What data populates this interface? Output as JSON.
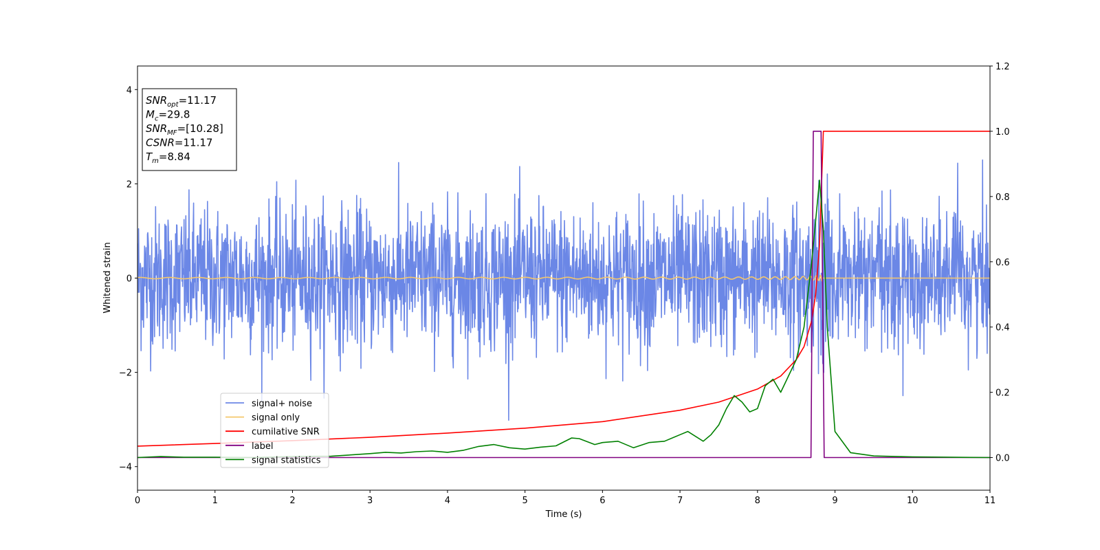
{
  "chart_data": {
    "type": "line",
    "title": "",
    "xlabel": "Time (s)",
    "ylabel": "Whitened strain",
    "xlim": [
      0,
      11
    ],
    "ylim_left": [
      -4.5,
      4.5
    ],
    "ylim_right": [
      -0.1,
      1.2
    ],
    "x_ticks": [
      "0",
      "1",
      "2",
      "3",
      "4",
      "5",
      "6",
      "7",
      "8",
      "9",
      "10",
      "11"
    ],
    "y_left_ticks": [
      "−4",
      "−2",
      "0",
      "2",
      "4"
    ],
    "y_right_ticks": [
      "0.0",
      "0.2",
      "0.4",
      "0.6",
      "0.8",
      "1.0",
      "1.2"
    ],
    "legend": {
      "position": "lower-left",
      "entries": [
        {
          "label": "signal+ noise",
          "color": "#6b87e6"
        },
        {
          "label": "signal only",
          "color": "#f5c76b"
        },
        {
          "label": "cumilative SNR",
          "color": "#ff0000"
        },
        {
          "label": "label",
          "color": "#800080"
        },
        {
          "label": "signal statistics",
          "color": "#008000"
        }
      ]
    },
    "info_box": {
      "position": "top-left",
      "lines": [
        {
          "sym": "SNR",
          "sub": "opt",
          "rest": "=11.17"
        },
        {
          "sym": "M",
          "sub": "c",
          "rest": "=29.8"
        },
        {
          "sym": "SNR",
          "sub": "MF",
          "rest": "=[10.28]"
        },
        {
          "sym": "CSNR",
          "sub": "",
          "rest": "=11.17"
        },
        {
          "sym": "T",
          "sub": "m",
          "rest": "=8.84"
        }
      ]
    },
    "series": [
      {
        "name": "signal+ noise",
        "axis": "left",
        "color": "#6b87e6",
        "noise_std": 0.75,
        "x_range": [
          0,
          11
        ],
        "merger_time": 8.84
      },
      {
        "name": "signal only",
        "axis": "left",
        "color": "#f5c76b",
        "x_range": [
          0,
          11
        ],
        "merger_time": 8.84,
        "peak_amplitude": 1.3
      },
      {
        "name": "cumilative SNR",
        "axis": "right",
        "color": "#ff0000",
        "x": [
          0,
          1,
          2,
          3,
          4,
          5,
          6,
          7,
          7.5,
          8,
          8.3,
          8.5,
          8.6,
          8.7,
          8.75,
          8.8,
          8.85,
          8.9,
          11
        ],
        "values": [
          0.035,
          0.043,
          0.052,
          0.062,
          0.075,
          0.09,
          0.11,
          0.145,
          0.17,
          0.21,
          0.25,
          0.3,
          0.34,
          0.42,
          0.5,
          0.65,
          1.0,
          1.0,
          1.0
        ]
      },
      {
        "name": "label",
        "axis": "right",
        "color": "#800080",
        "x": [
          0,
          8.69,
          8.72,
          8.82,
          8.86,
          11
        ],
        "values": [
          0,
          0,
          1,
          1,
          0,
          0
        ]
      },
      {
        "name": "signal statistics",
        "axis": "right",
        "color": "#008000",
        "x": [
          0,
          0.3,
          0.6,
          1.0,
          1.5,
          2.0,
          2.5,
          3.0,
          3.2,
          3.4,
          3.6,
          3.8,
          4.0,
          4.2,
          4.4,
          4.6,
          4.8,
          5.0,
          5.2,
          5.4,
          5.6,
          5.7,
          5.9,
          6.0,
          6.2,
          6.4,
          6.6,
          6.8,
          7.0,
          7.1,
          7.3,
          7.4,
          7.5,
          7.6,
          7.7,
          7.8,
          7.9,
          8.0,
          8.1,
          8.2,
          8.3,
          8.4,
          8.5,
          8.6,
          8.7,
          8.8,
          8.85,
          8.9,
          9.0,
          9.2,
          9.5,
          10.0,
          11.0
        ],
        "values": [
          0.0,
          0.003,
          0.001,
          0.001,
          0.0,
          0.003,
          0.004,
          0.012,
          0.016,
          0.014,
          0.018,
          0.02,
          0.016,
          0.022,
          0.034,
          0.04,
          0.03,
          0.026,
          0.032,
          0.036,
          0.06,
          0.058,
          0.04,
          0.046,
          0.05,
          0.03,
          0.046,
          0.05,
          0.07,
          0.08,
          0.05,
          0.07,
          0.1,
          0.15,
          0.19,
          0.17,
          0.14,
          0.15,
          0.22,
          0.24,
          0.2,
          0.25,
          0.3,
          0.4,
          0.6,
          0.85,
          0.7,
          0.4,
          0.08,
          0.015,
          0.005,
          0.002,
          0.0
        ]
      }
    ]
  }
}
